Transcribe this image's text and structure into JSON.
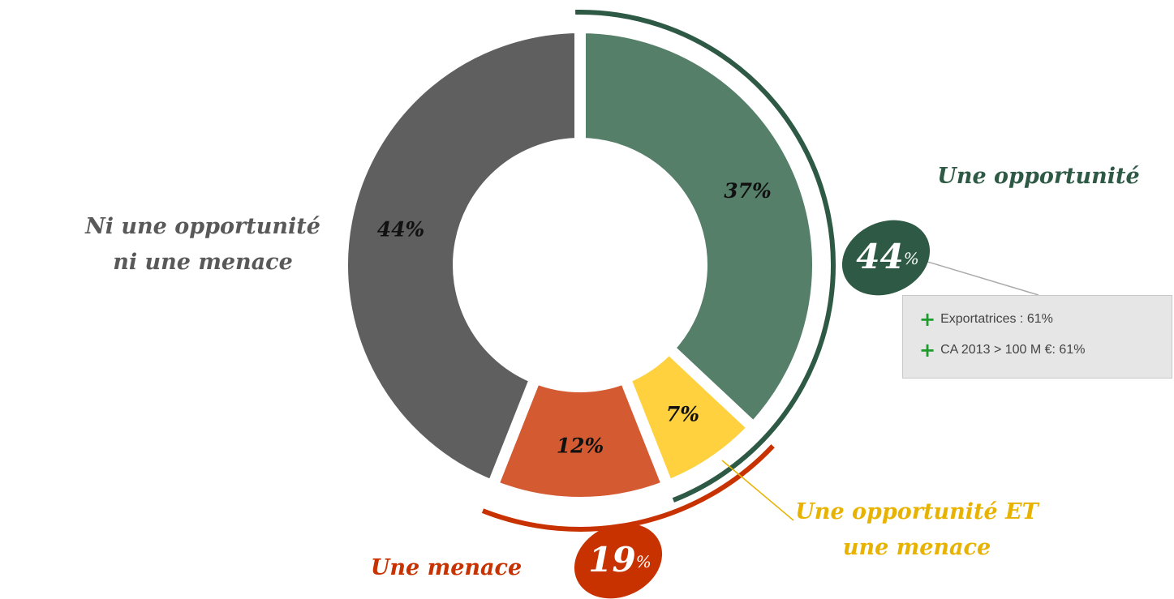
{
  "chart_data": {
    "type": "donut",
    "categories": [
      "Une opportunité",
      "Une opportunité ET une menace",
      "Une menace",
      "Ni une opportunité ni une menace"
    ],
    "values": [
      37,
      7,
      12,
      44
    ],
    "value_labels": [
      "37%",
      "7%",
      "12%",
      "44%"
    ],
    "colors": [
      "#567f69",
      "#ffd13f",
      "#d45a32",
      "#5f5f5f"
    ],
    "groups": [
      {
        "value": 44,
        "label": "44",
        "color": "#2e5a45"
      },
      {
        "value": 19,
        "label": "19",
        "color": "#c83200"
      }
    ],
    "percent_sign": "%",
    "notes": [
      "Exportatrices : 61%",
      "CA 2013 > 100 M €: 61%"
    ]
  }
}
